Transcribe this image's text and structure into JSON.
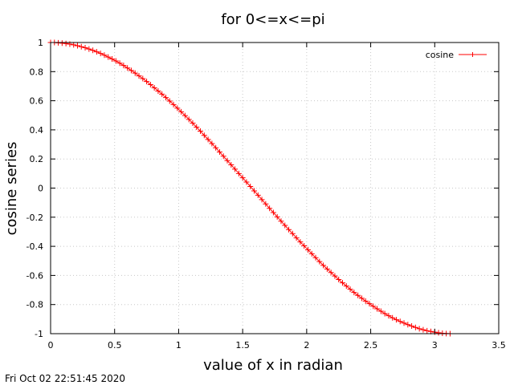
{
  "chart_data": {
    "type": "line",
    "title": "for 0<=x<=pi",
    "xlabel": "value of x in radian",
    "ylabel": "cosine series",
    "xlim": [
      0,
      3.5
    ],
    "ylim": [
      -1,
      1
    ],
    "xticks": [
      "0",
      "0.5",
      "1",
      "1.5",
      "2",
      "2.5",
      "3",
      "3.5"
    ],
    "yticks": [
      "1",
      "0.8",
      "0.6",
      "0.4",
      "0.2",
      "0",
      "-0.2",
      "-0.4",
      "-0.6",
      "-0.8",
      "-1"
    ],
    "grid": true,
    "legend_position": "top-right",
    "series": [
      {
        "name": "cosine",
        "color": "#ff0000",
        "x": [
          0.0,
          0.03,
          0.06,
          0.09,
          0.12,
          0.15,
          0.18,
          0.21,
          0.24,
          0.27,
          0.3,
          0.33,
          0.36,
          0.39,
          0.42,
          0.45,
          0.48,
          0.51,
          0.54,
          0.57,
          0.6,
          0.63,
          0.66,
          0.69,
          0.72,
          0.75,
          0.78,
          0.81,
          0.84,
          0.87,
          0.9,
          0.93,
          0.96,
          0.99,
          1.02,
          1.05,
          1.08,
          1.11,
          1.14,
          1.17,
          1.2,
          1.23,
          1.26,
          1.29,
          1.32,
          1.35,
          1.38,
          1.41,
          1.44,
          1.47,
          1.5,
          1.53,
          1.56,
          1.59,
          1.62,
          1.65,
          1.68,
          1.71,
          1.74,
          1.77,
          1.8,
          1.83,
          1.86,
          1.89,
          1.92,
          1.95,
          1.98,
          2.01,
          2.04,
          2.07,
          2.1,
          2.13,
          2.16,
          2.19,
          2.22,
          2.25,
          2.28,
          2.31,
          2.34,
          2.37,
          2.4,
          2.43,
          2.46,
          2.49,
          2.52,
          2.55,
          2.58,
          2.61,
          2.64,
          2.67,
          2.7,
          2.73,
          2.76,
          2.79,
          2.82,
          2.85,
          2.88,
          2.91,
          2.94,
          2.97,
          3.0,
          3.03,
          3.06,
          3.09,
          3.12
        ],
        "y": [
          1.0,
          1.0,
          0.998,
          0.996,
          0.993,
          0.989,
          0.984,
          0.978,
          0.971,
          0.964,
          0.955,
          0.946,
          0.936,
          0.925,
          0.913,
          0.9,
          0.887,
          0.873,
          0.858,
          0.842,
          0.825,
          0.808,
          0.79,
          0.771,
          0.752,
          0.732,
          0.711,
          0.689,
          0.667,
          0.645,
          0.622,
          0.598,
          0.574,
          0.549,
          0.524,
          0.498,
          0.472,
          0.446,
          0.419,
          0.391,
          0.362,
          0.334,
          0.306,
          0.277,
          0.248,
          0.219,
          0.189,
          0.16,
          0.13,
          0.1,
          0.071,
          0.041,
          0.011,
          -0.019,
          -0.049,
          -0.079,
          -0.109,
          -0.139,
          -0.168,
          -0.198,
          -0.227,
          -0.256,
          -0.285,
          -0.313,
          -0.342,
          -0.37,
          -0.397,
          -0.424,
          -0.451,
          -0.478,
          -0.505,
          -0.531,
          -0.556,
          -0.58,
          -0.604,
          -0.628,
          -0.651,
          -0.673,
          -0.695,
          -0.717,
          -0.737,
          -0.757,
          -0.776,
          -0.794,
          -0.812,
          -0.829,
          -0.846,
          -0.862,
          -0.877,
          -0.891,
          -0.904,
          -0.916,
          -0.927,
          -0.938,
          -0.948,
          -0.957,
          -0.966,
          -0.973,
          -0.98,
          -0.985,
          -0.99,
          -0.994,
          -0.997,
          -0.999,
          -1.0
        ]
      }
    ]
  },
  "timestamp": "Fri Oct 02 22:51:45 2020"
}
